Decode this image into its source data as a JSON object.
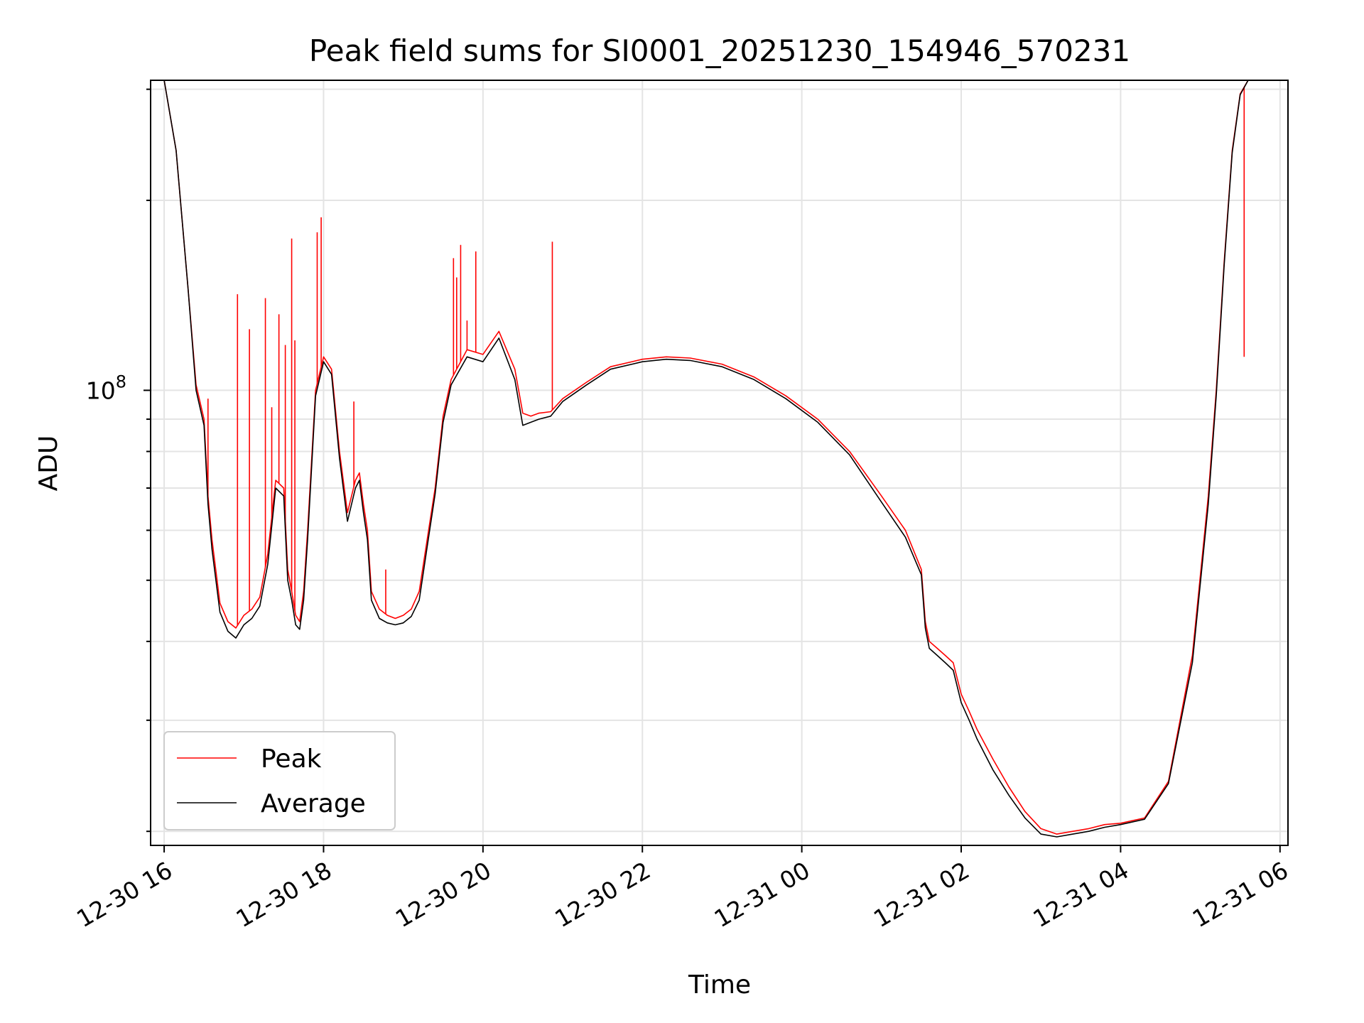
{
  "chart_data": {
    "type": "line",
    "title": "Peak field sums for SI0001_20251230_154946_570231",
    "xlabel": "Time",
    "ylabel": "ADU",
    "y_scale": "log",
    "y_tick_label": "10",
    "y_tick_exp": "8",
    "y_tick_value": 100000000,
    "ylim": [
      19000000,
      310000000
    ],
    "xlim_hours": [
      15.83,
      30.1
    ],
    "x_tick_labels": [
      "12-30 16",
      "12-30 18",
      "12-30 20",
      "12-30 22",
      "12-31 00",
      "12-31 02",
      "12-31 04",
      "12-31 06"
    ],
    "x_tick_hours": [
      16,
      18,
      20,
      22,
      24,
      26,
      28,
      30
    ],
    "grid": true,
    "legend_position": "lower-left",
    "series": [
      {
        "name": "Peak",
        "color": "#ff0000",
        "x_hours": [
          15.83,
          16.0,
          16.15,
          16.3,
          16.4,
          16.5,
          16.55,
          16.6,
          16.7,
          16.8,
          16.9,
          17.0,
          17.1,
          17.2,
          17.3,
          17.4,
          17.5,
          17.55,
          17.6,
          17.65,
          17.7,
          17.75,
          17.8,
          17.9,
          18.0,
          18.1,
          18.2,
          18.3,
          18.4,
          18.45,
          18.5,
          18.55,
          18.6,
          18.7,
          18.8,
          18.9,
          19.0,
          19.1,
          19.2,
          19.3,
          19.4,
          19.5,
          19.6,
          19.8,
          20.0,
          20.2,
          20.4,
          20.5,
          20.6,
          20.7,
          20.85,
          21.0,
          21.3,
          21.6,
          22.0,
          22.3,
          22.6,
          23.0,
          23.4,
          23.8,
          24.2,
          24.6,
          25.0,
          25.3,
          25.5,
          25.55,
          25.6,
          25.7,
          25.8,
          25.9,
          26.0,
          26.1,
          26.2,
          26.4,
          26.6,
          26.8,
          27.0,
          27.2,
          27.4,
          27.6,
          27.8,
          28.0,
          28.3,
          28.6,
          28.9,
          29.1,
          29.2,
          29.3,
          29.4,
          29.5,
          29.6,
          29.7,
          29.8,
          29.9,
          30.1
        ],
        "values": [
          310000000,
          310000000,
          240000000,
          145000000,
          102000000,
          90000000,
          68000000,
          58000000,
          46000000,
          43000000,
          42000000,
          44000000,
          45000000,
          47000000,
          55000000,
          72000000,
          70000000,
          52000000,
          48000000,
          44000000,
          43000000,
          48000000,
          60000000,
          100000000,
          113000000,
          108000000,
          80000000,
          64000000,
          72000000,
          74000000,
          66000000,
          60000000,
          48000000,
          45000000,
          44000000,
          43500000,
          44000000,
          45000000,
          48000000,
          58000000,
          70000000,
          91000000,
          104000000,
          116000000,
          114000000,
          124000000,
          108000000,
          92000000,
          91000000,
          92000000,
          92500000,
          97000000,
          103000000,
          109000000,
          112000000,
          113000000,
          112500000,
          110000000,
          105000000,
          98000000,
          90000000,
          80000000,
          68000000,
          60000000,
          52000000,
          43000000,
          40000000,
          39000000,
          38000000,
          37000000,
          33000000,
          31000000,
          29000000,
          26000000,
          23500000,
          21500000,
          20200000,
          19800000,
          20000000,
          20200000,
          20500000,
          20600000,
          21000000,
          24000000,
          38000000,
          68000000,
          100000000,
          160000000,
          240000000,
          295000000,
          310000000,
          310000000,
          310000000,
          310000000,
          310000000
        ]
      },
      {
        "name": "Average",
        "color": "#000000",
        "x_hours": [
          15.83,
          16.0,
          16.15,
          16.3,
          16.4,
          16.5,
          16.55,
          16.6,
          16.7,
          16.8,
          16.9,
          17.0,
          17.1,
          17.2,
          17.3,
          17.4,
          17.5,
          17.55,
          17.6,
          17.65,
          17.7,
          17.75,
          17.8,
          17.9,
          18.0,
          18.1,
          18.2,
          18.3,
          18.4,
          18.45,
          18.5,
          18.55,
          18.6,
          18.7,
          18.8,
          18.9,
          19.0,
          19.1,
          19.2,
          19.3,
          19.4,
          19.5,
          19.6,
          19.8,
          20.0,
          20.2,
          20.4,
          20.5,
          20.6,
          20.7,
          20.85,
          21.0,
          21.3,
          21.6,
          22.0,
          22.3,
          22.6,
          23.0,
          23.4,
          23.8,
          24.2,
          24.6,
          25.0,
          25.3,
          25.5,
          25.55,
          25.6,
          25.7,
          25.8,
          25.9,
          26.0,
          26.1,
          26.2,
          26.4,
          26.6,
          26.8,
          27.0,
          27.2,
          27.4,
          27.6,
          27.8,
          28.0,
          28.3,
          28.6,
          28.9,
          29.1,
          29.2,
          29.3,
          29.4,
          29.5,
          29.6,
          29.7,
          29.8,
          29.9,
          30.1
        ],
        "values": [
          310000000,
          310000000,
          240000000,
          145000000,
          100000000,
          88000000,
          66000000,
          56000000,
          44500000,
          41500000,
          40500000,
          42500000,
          43500000,
          45500000,
          53000000,
          70000000,
          68000000,
          50000000,
          46500000,
          42500000,
          41800000,
          46500000,
          58000000,
          98000000,
          111000000,
          106000000,
          78000000,
          62000000,
          70000000,
          72000000,
          64000000,
          58000000,
          46500000,
          43500000,
          42800000,
          42500000,
          42800000,
          43800000,
          46500000,
          56500000,
          68500000,
          89000000,
          102000000,
          113000000,
          111000000,
          121000000,
          104000000,
          88000000,
          89000000,
          90000000,
          91000000,
          96000000,
          102000000,
          108000000,
          111000000,
          112000000,
          111500000,
          109000000,
          104000000,
          97000000,
          89000000,
          79000000,
          66500000,
          58500000,
          51000000,
          42000000,
          39000000,
          38000000,
          37000000,
          36000000,
          32000000,
          30000000,
          28000000,
          25000000,
          22800000,
          21000000,
          19800000,
          19600000,
          19800000,
          20000000,
          20300000,
          20500000,
          20900000,
          23800000,
          37000000,
          66000000,
          98000000,
          158000000,
          238000000,
          294000000,
          310000000,
          310000000,
          310000000,
          310000000,
          310000000
        ]
      }
    ],
    "spikes": {
      "peak_x_hours": [
        16.55,
        16.92,
        17.07,
        17.27,
        17.35,
        17.44,
        17.52,
        17.6,
        17.64,
        17.92,
        17.97,
        18.38,
        18.78,
        19.63,
        19.67,
        19.72,
        19.8,
        19.91,
        20.87,
        29.55
      ],
      "peak_values": [
        97000000,
        142000000,
        125000000,
        140000000,
        94000000,
        132000000,
        118000000,
        174000000,
        120000000,
        178000000,
        188000000,
        96000000,
        52000000,
        162000000,
        151000000,
        170000000,
        129000000,
        166000000,
        172000000,
        113000000
      ]
    }
  }
}
